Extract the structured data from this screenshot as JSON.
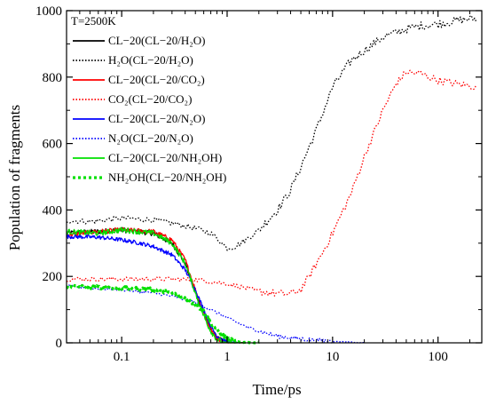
{
  "chart_data": {
    "type": "line",
    "annotation": "T=2500K",
    "xlabel": "Time/ps",
    "ylabel": "Population of fragments",
    "x_scale": "log",
    "xlim": [
      0.03,
      260
    ],
    "ylim": [
      0,
      1000
    ],
    "x_ticks": [
      0.1,
      1,
      10,
      100
    ],
    "x_tick_labels": [
      "0.1",
      "1",
      "10",
      "100"
    ],
    "y_ticks": [
      0,
      200,
      400,
      600,
      800,
      1000
    ],
    "y_tick_labels": [
      "0",
      "200",
      "400",
      "600",
      "800",
      "1000"
    ],
    "grid": false,
    "legend_position": "top-left",
    "series": [
      {
        "name": "CL−20(CL−20/H₂O)",
        "color": "#000000",
        "style": "solid",
        "noise": 8,
        "x": [
          0.03,
          0.06,
          0.1,
          0.2,
          0.3,
          0.4,
          0.5,
          0.6,
          0.7,
          0.8,
          0.9,
          1.0,
          1.5
        ],
        "y": [
          330,
          335,
          340,
          330,
          300,
          240,
          150,
          90,
          40,
          15,
          5,
          0,
          0
        ]
      },
      {
        "name": "H₂O(CL−20/H₂O)",
        "color": "#000000",
        "style": "dotted",
        "noise": 8,
        "x": [
          0.03,
          0.05,
          0.1,
          0.2,
          0.3,
          0.5,
          0.7,
          0.9,
          1.0,
          1.2,
          1.5,
          2,
          3,
          4,
          5,
          7,
          10,
          15,
          20,
          30,
          50,
          70,
          100,
          150,
          200,
          230
        ],
        "y": [
          368,
          365,
          375,
          370,
          360,
          345,
          330,
          300,
          285,
          290,
          310,
          340,
          400,
          460,
          530,
          640,
          770,
          850,
          880,
          920,
          945,
          955,
          960,
          970,
          975,
          975
        ]
      },
      {
        "name": "CL−20(CL−20/CO₂)",
        "color": "#ff0000",
        "style": "solid",
        "noise": 7,
        "x": [
          0.03,
          0.06,
          0.1,
          0.2,
          0.3,
          0.4,
          0.5,
          0.6,
          0.7,
          0.8,
          0.9,
          1.0,
          1.5
        ],
        "y": [
          325,
          335,
          340,
          335,
          310,
          250,
          160,
          90,
          40,
          15,
          5,
          0,
          0
        ]
      },
      {
        "name": "CO₂(CL−20/CO₂)",
        "color": "#ff0000",
        "style": "dotted",
        "noise": 7,
        "x": [
          0.03,
          0.1,
          0.3,
          0.5,
          0.8,
          1.0,
          1.5,
          2,
          3,
          4,
          5,
          6,
          8,
          10,
          15,
          20,
          30,
          40,
          50,
          70,
          100,
          150,
          230
        ],
        "y": [
          192,
          192,
          192,
          190,
          182,
          178,
          165,
          155,
          148,
          148,
          160,
          200,
          270,
          330,
          450,
          560,
          700,
          780,
          815,
          810,
          790,
          780,
          770
        ]
      },
      {
        "name": "CL−20(CL−20/N₂O)",
        "color": "#0000ff",
        "style": "solid",
        "noise": 6,
        "x": [
          0.03,
          0.06,
          0.1,
          0.15,
          0.2,
          0.3,
          0.4,
          0.5,
          0.6,
          0.7,
          0.8,
          1.0,
          1.3
        ],
        "y": [
          320,
          318,
          310,
          300,
          290,
          265,
          220,
          160,
          100,
          50,
          20,
          3,
          0
        ]
      },
      {
        "name": "N₂O(CL−20/N₂O)",
        "color": "#0000ff",
        "style": "dotted",
        "noise": 4,
        "x": [
          0.03,
          0.1,
          0.2,
          0.3,
          0.5,
          0.7,
          1.0,
          1.5,
          2,
          3,
          5,
          7,
          10,
          15,
          20
        ],
        "y": [
          170,
          160,
          150,
          140,
          122,
          100,
          75,
          50,
          35,
          20,
          12,
          8,
          4,
          2,
          0
        ]
      },
      {
        "name": "CL−20(CL−20/NH₂OH)",
        "color": "#00e000",
        "style": "solid",
        "noise": 8,
        "x": [
          0.03,
          0.06,
          0.1,
          0.2,
          0.3,
          0.4,
          0.5,
          0.6,
          0.7,
          0.8,
          0.9,
          1.0,
          1.5
        ],
        "y": [
          335,
          330,
          340,
          330,
          300,
          240,
          150,
          80,
          35,
          10,
          3,
          0,
          0
        ]
      },
      {
        "name": "NH₂OH(CL−20/NH₂OH)",
        "color": "#00e000",
        "style": "dotted-bold",
        "noise": 5,
        "x": [
          0.03,
          0.1,
          0.2,
          0.3,
          0.4,
          0.5,
          0.6,
          0.7,
          0.8,
          0.9,
          1.0,
          1.3,
          2
        ],
        "y": [
          170,
          165,
          160,
          150,
          135,
          115,
          95,
          60,
          40,
          25,
          12,
          2,
          0
        ]
      }
    ]
  }
}
